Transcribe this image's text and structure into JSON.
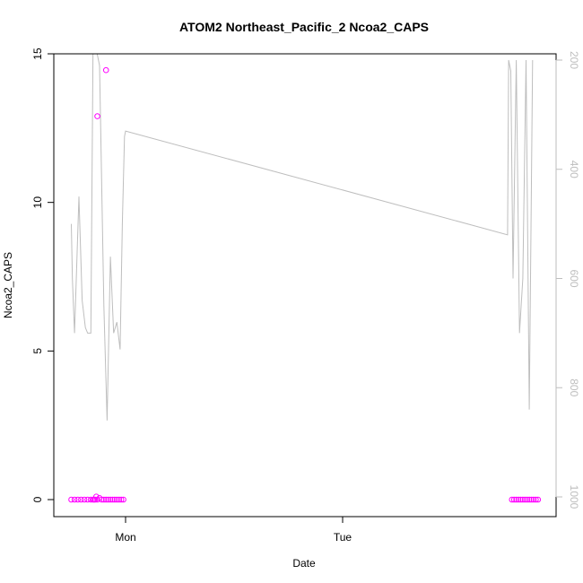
{
  "chart_data": {
    "type": "scatter",
    "title": "ATOM2 Northeast_Pacific_2 Ncoa2_CAPS",
    "xlabel": "Date",
    "ylabel": "Ncoa2_CAPS",
    "ylim": [
      0,
      15
    ],
    "y_ticks": [
      "0",
      "5",
      "10",
      "15"
    ],
    "x_ticks": [
      {
        "label": "Mon",
        "t": 0
      },
      {
        "label": "Tue",
        "t": 1
      }
    ],
    "y2_reversed": true,
    "y2lim": [
      200,
      1000
    ],
    "y2_ticks": [
      "200",
      "400",
      "600",
      "800",
      "1000"
    ],
    "grid": false,
    "colors": {
      "points": "#ff00ff",
      "line": "#bebebe",
      "right_axis": "#bebebe"
    },
    "series": [
      {
        "kind": "points",
        "axis": "left",
        "x": [
          -0.25,
          -0.235,
          -0.22,
          -0.205,
          -0.19,
          -0.175,
          -0.16,
          -0.15,
          -0.145,
          -0.14,
          -0.135,
          -0.13,
          -0.12,
          -0.11,
          -0.1,
          -0.09,
          -0.08,
          -0.07,
          -0.06,
          -0.05,
          -0.04,
          -0.03,
          -0.02,
          -0.01,
          -0.13,
          -0.09,
          1.78,
          1.79,
          1.8,
          1.81,
          1.82,
          1.83,
          1.84,
          1.85,
          1.86,
          1.87,
          1.88,
          1.89,
          1.9
        ],
        "y": [
          0,
          0,
          0,
          0,
          0,
          0,
          0,
          0,
          0,
          0,
          0.1,
          0,
          0.05,
          0,
          0,
          0,
          0,
          0,
          0,
          0,
          0,
          0,
          0,
          0,
          12.9,
          14.45,
          0,
          0,
          0,
          0,
          0,
          0,
          0,
          0,
          0,
          0,
          0,
          0,
          0
        ]
      },
      {
        "kind": "line",
        "axis": "right",
        "x": [
          -0.25,
          -0.245,
          -0.235,
          -0.215,
          -0.2,
          -0.185,
          -0.175,
          -0.16,
          -0.15,
          -0.145,
          -0.14,
          -0.135,
          -0.12,
          -0.1,
          -0.085,
          -0.07,
          -0.055,
          -0.04,
          -0.025,
          -0.015,
          -0.005,
          0.0,
          1.76,
          1.765,
          1.775,
          1.785,
          1.8,
          1.815,
          1.83,
          1.845,
          1.86,
          1.875
        ],
        "y": [
          500,
          600,
          700,
          450,
          640,
          690,
          700,
          700,
          180,
          180,
          180,
          180,
          210,
          650,
          860,
          560,
          700,
          680,
          730,
          500,
          340,
          330,
          520,
          200,
          220,
          600,
          200,
          700,
          600,
          200,
          840,
          200
        ]
      }
    ]
  }
}
